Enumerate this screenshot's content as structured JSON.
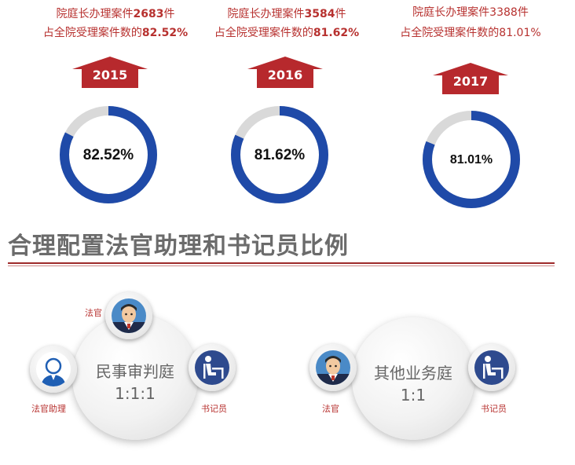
{
  "years": [
    {
      "line1_pre": "院庭长办理案件",
      "count": "2683",
      "line1_post": "件",
      "line2_pre": "占全院受理案件数的",
      "pct_text": "82.52%",
      "year": "2015",
      "ratio": 0.8252
    },
    {
      "line1_pre": "院庭长办理案件",
      "count": "3584",
      "line1_post": "件",
      "line2_pre": "占全院受理案件数的",
      "pct_text": "81.62%",
      "year": "2016",
      "ratio": 0.8162
    },
    {
      "line1_pre": "院庭长办理案件",
      "count": "3388",
      "line1_post": "件",
      "line2_pre": "占全院受理案件数的",
      "pct_text": "81.01%",
      "year": "2017",
      "ratio": 0.8101
    }
  ],
  "chart_data": {
    "type": "pie",
    "categories": [
      "2015",
      "2016",
      "2017"
    ],
    "values": [
      82.52,
      81.62,
      81.01
    ],
    "counts": [
      2683,
      3584,
      3388
    ]
  },
  "section_title": "合理配置法官助理和书记员比例",
  "civil": {
    "name": "民事审判庭",
    "ratio": "1:1:1",
    "judge_label": "法官",
    "assistant_label": "法官助理",
    "clerk_label": "书记员"
  },
  "other": {
    "name": "其他业务庭",
    "ratio": "1:1",
    "judge_label": "法官",
    "clerk_label": "书记员"
  },
  "colors": {
    "accent_red": "#b7292d",
    "ring_blue": "#1f4aa8",
    "ring_gray": "#d9d9d9",
    "heading_gray": "#6b6b6b"
  },
  "icons": {
    "judge": "judge-avatar-icon",
    "assistant": "assistant-avatar-icon",
    "clerk": "clerk-desk-icon"
  }
}
